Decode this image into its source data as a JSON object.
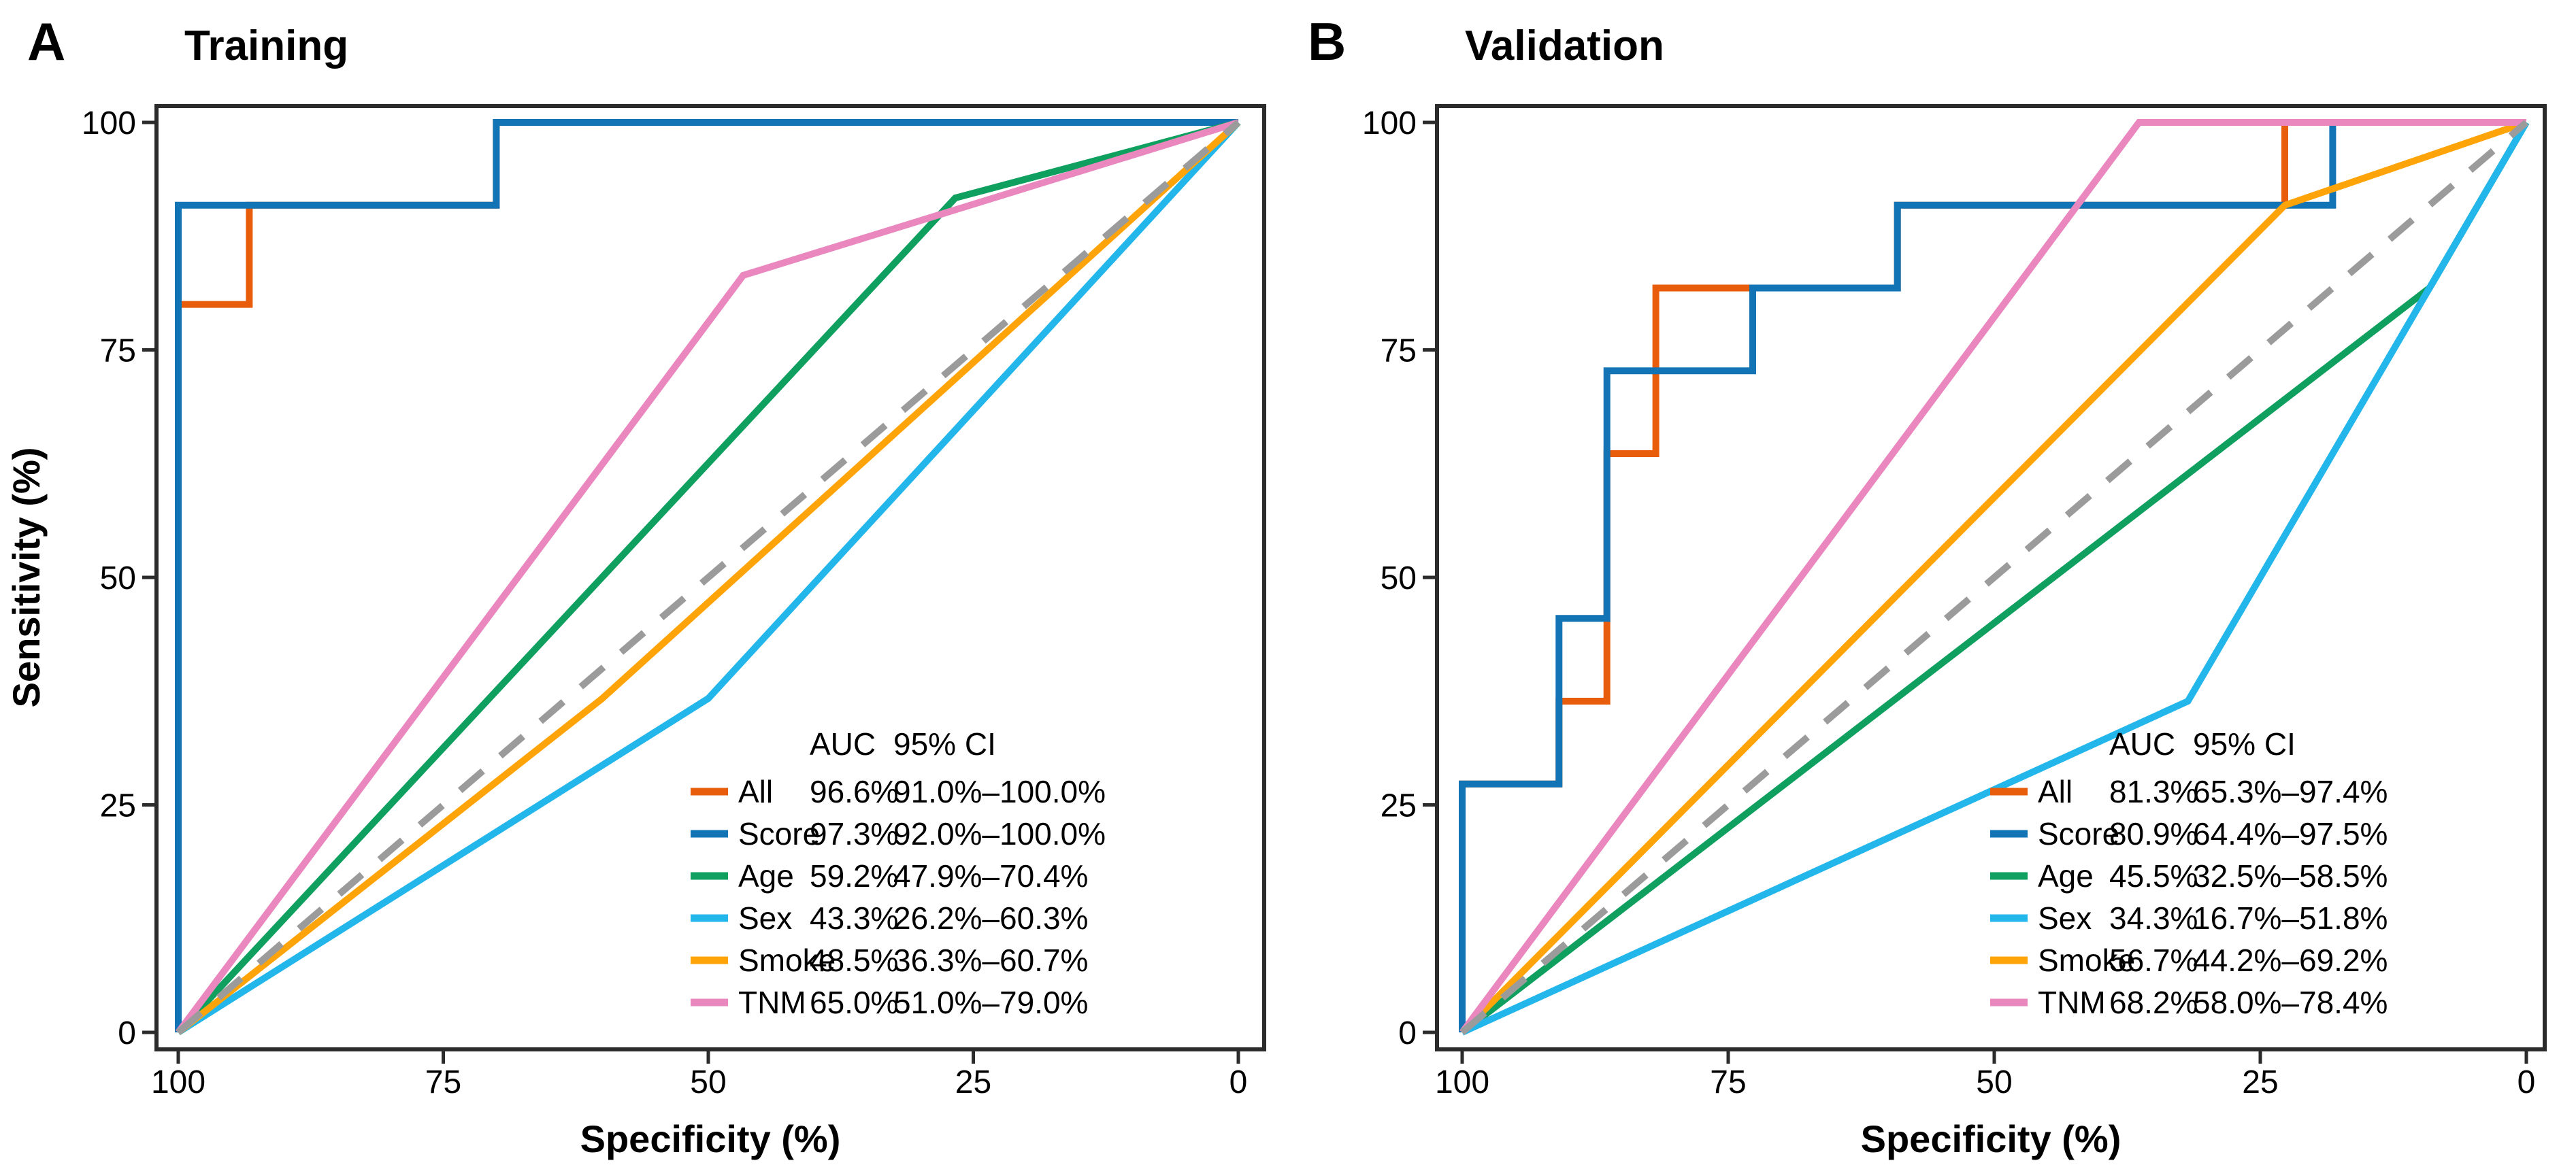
{
  "chart_data": [
    {
      "id": "training",
      "type": "line",
      "panel_label": "A",
      "title": "Training",
      "xlabel": "Specificity (%)",
      "ylabel": "Sensitivity (%)",
      "x_axis": {
        "range": [
          100,
          0
        ],
        "reversed": true,
        "ticks": [
          "100",
          "75",
          "50",
          "25",
          "0"
        ]
      },
      "y_axis": {
        "range": [
          0,
          100
        ],
        "ticks": [
          "0",
          "25",
          "50",
          "75",
          "100"
        ]
      },
      "grid": false,
      "legend_position": "bottom-right",
      "diagonal": {
        "style": "dashed",
        "color": "#9B9B9B",
        "points": [
          [
            100,
            0
          ],
          [
            0,
            100
          ]
        ]
      },
      "series": [
        {
          "name": "All",
          "color": "#E85D0C",
          "points": [
            [
              100,
              0
            ],
            [
              100,
              80
            ],
            [
              93.3,
              80
            ],
            [
              93.3,
              90.9
            ],
            [
              70,
              90.9
            ],
            [
              70,
              100
            ],
            [
              0,
              100
            ]
          ]
        },
        {
          "name": "Score",
          "color": "#1273B5",
          "points": [
            [
              100,
              0
            ],
            [
              100,
              90.9
            ],
            [
              70,
              90.9
            ],
            [
              70,
              100
            ],
            [
              0,
              100
            ]
          ]
        },
        {
          "name": "Age",
          "color": "#0FA05F",
          "points": [
            [
              100,
              0
            ],
            [
              26.7,
              91.7
            ],
            [
              0,
              100
            ]
          ]
        },
        {
          "name": "Sex",
          "color": "#23B6EB",
          "points": [
            [
              100,
              0
            ],
            [
              50,
              36.7
            ],
            [
              0,
              100
            ]
          ]
        },
        {
          "name": "Smoke",
          "color": "#FFA408",
          "points": [
            [
              100,
              0
            ],
            [
              60,
              36.7
            ],
            [
              0,
              100
            ]
          ]
        },
        {
          "name": "TNM",
          "color": "#E987BE",
          "points": [
            [
              100,
              0
            ],
            [
              46.7,
              83.2
            ],
            [
              0,
              100
            ]
          ]
        }
      ],
      "legend": {
        "auc_header": "AUC",
        "ci_header": "95% CI",
        "rows": [
          {
            "name": "All",
            "auc": "96.6%",
            "ci": "91.0%–100.0%"
          },
          {
            "name": "Score",
            "auc": "97.3%",
            "ci": "92.0%–100.0%"
          },
          {
            "name": "Age",
            "auc": "59.2%",
            "ci": "47.9%–70.4%"
          },
          {
            "name": "Sex",
            "auc": "43.3%",
            "ci": "26.2%–60.3%"
          },
          {
            "name": "Smoke",
            "auc": "48.5%",
            "ci": "36.3%–60.7%"
          },
          {
            "name": "TNM",
            "auc": "65.0%",
            "ci": "51.0%–79.0%"
          }
        ]
      }
    },
    {
      "id": "validation",
      "type": "line",
      "panel_label": "B",
      "title": "Validation",
      "xlabel": "Specificity (%)",
      "ylabel": "Sensitivity (%)",
      "x_axis": {
        "range": [
          100,
          0
        ],
        "reversed": true,
        "ticks": [
          "100",
          "75",
          "50",
          "25",
          "0"
        ]
      },
      "y_axis": {
        "range": [
          0,
          100
        ],
        "ticks": [
          "0",
          "25",
          "50",
          "75",
          "100"
        ]
      },
      "grid": false,
      "legend_position": "bottom-right",
      "diagonal": {
        "style": "dashed",
        "color": "#9B9B9B",
        "points": [
          [
            100,
            0
          ],
          [
            0,
            100
          ]
        ]
      },
      "series": [
        {
          "name": "All",
          "color": "#E85D0C",
          "points": [
            [
              100,
              0
            ],
            [
              100,
              27.3
            ],
            [
              90.9,
              27.3
            ],
            [
              90.9,
              36.4
            ],
            [
              86.4,
              36.4
            ],
            [
              86.4,
              63.6
            ],
            [
              81.8,
              63.6
            ],
            [
              81.8,
              81.8
            ],
            [
              59.1,
              81.8
            ],
            [
              59.1,
              90.9
            ],
            [
              22.7,
              90.9
            ],
            [
              22.7,
              100
            ],
            [
              0,
              100
            ]
          ]
        },
        {
          "name": "Score",
          "color": "#1273B5",
          "points": [
            [
              100,
              0
            ],
            [
              100,
              27.3
            ],
            [
              90.9,
              27.3
            ],
            [
              90.9,
              45.5
            ],
            [
              86.4,
              45.5
            ],
            [
              86.4,
              72.7
            ],
            [
              72.7,
              72.7
            ],
            [
              72.7,
              81.8
            ],
            [
              59.1,
              81.8
            ],
            [
              59.1,
              90.9
            ],
            [
              18.2,
              90.9
            ],
            [
              18.2,
              100
            ],
            [
              0,
              100
            ]
          ]
        },
        {
          "name": "Age",
          "color": "#0FA05F",
          "points": [
            [
              100,
              0
            ],
            [
              9.1,
              81.8
            ],
            [
              0,
              100
            ]
          ]
        },
        {
          "name": "Sex",
          "color": "#23B6EB",
          "points": [
            [
              100,
              0
            ],
            [
              31.8,
              36.4
            ],
            [
              0,
              100
            ]
          ]
        },
        {
          "name": "Smoke",
          "color": "#FFA408",
          "points": [
            [
              100,
              0
            ],
            [
              22.7,
              90.9
            ],
            [
              0,
              100
            ]
          ]
        },
        {
          "name": "TNM",
          "color": "#E987BE",
          "points": [
            [
              100,
              0
            ],
            [
              36.4,
              100
            ],
            [
              0,
              100
            ]
          ]
        }
      ],
      "legend": {
        "auc_header": "AUC",
        "ci_header": "95% CI",
        "rows": [
          {
            "name": "All",
            "auc": "81.3%",
            "ci": "65.3%–97.4%"
          },
          {
            "name": "Score",
            "auc": "80.9%",
            "ci": "64.4%–97.5%"
          },
          {
            "name": "Age",
            "auc": "45.5%",
            "ci": "32.5%–58.5%"
          },
          {
            "name": "Sex",
            "auc": "34.3%",
            "ci": "16.7%–51.8%"
          },
          {
            "name": "Smoke",
            "auc": "56.7%",
            "ci": "44.2%–69.2%"
          },
          {
            "name": "TNM",
            "auc": "68.2%",
            "ci": "58.0%–78.4%"
          }
        ]
      }
    }
  ],
  "styles": {
    "border_color": "#2B2B2B",
    "text_color": "#000000",
    "curve_width": 10,
    "diagonal_dash": "44 34"
  }
}
